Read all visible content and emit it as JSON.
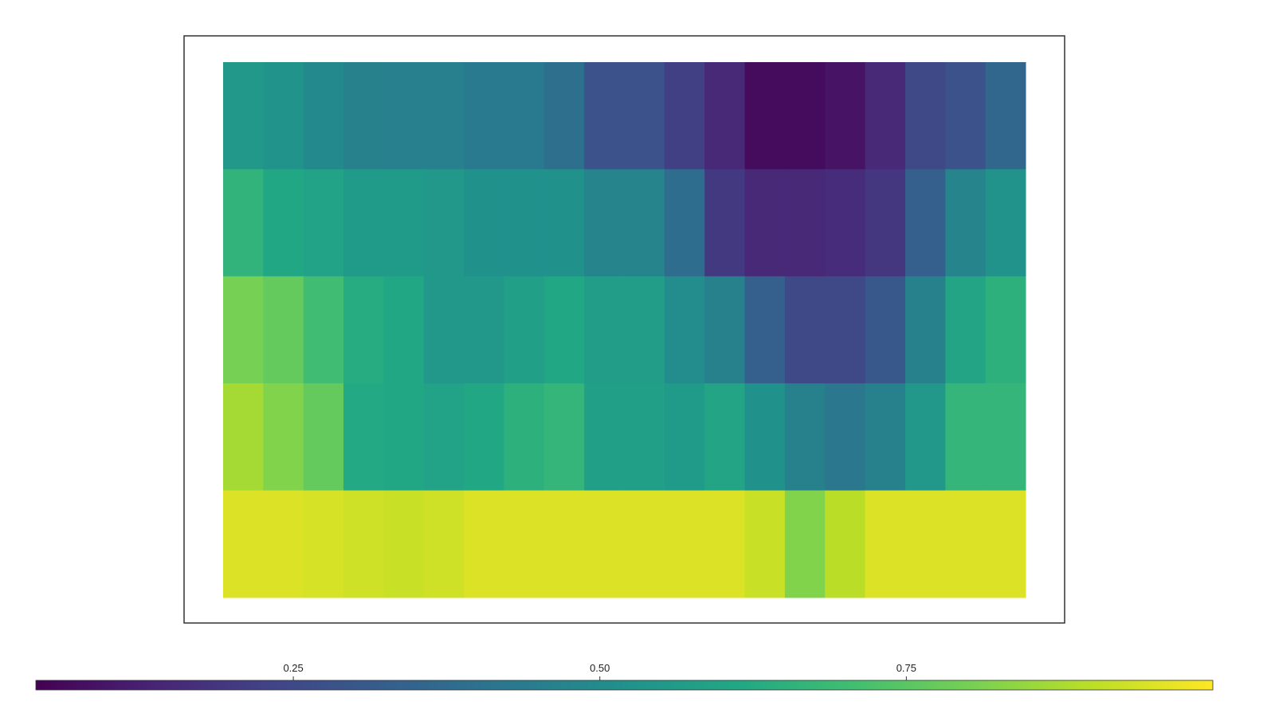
{
  "chart_data": {
    "type": "heatmap",
    "colormap": "viridis",
    "values": [
      [
        0.55,
        0.53,
        0.49,
        0.46,
        0.45,
        0.45,
        0.43,
        0.43,
        0.39,
        0.28,
        0.28,
        0.22,
        0.15,
        0.07,
        0.07,
        0.09,
        0.15,
        0.25,
        0.28,
        0.36
      ],
      [
        0.66,
        0.61,
        0.59,
        0.56,
        0.56,
        0.55,
        0.52,
        0.52,
        0.52,
        0.47,
        0.47,
        0.38,
        0.2,
        0.15,
        0.15,
        0.16,
        0.19,
        0.33,
        0.47,
        0.53
      ],
      [
        0.8,
        0.77,
        0.7,
        0.63,
        0.61,
        0.55,
        0.55,
        0.58,
        0.61,
        0.57,
        0.57,
        0.5,
        0.46,
        0.33,
        0.25,
        0.25,
        0.3,
        0.46,
        0.6,
        0.65
      ],
      [
        0.87,
        0.82,
        0.77,
        0.62,
        0.61,
        0.59,
        0.61,
        0.65,
        0.67,
        0.58,
        0.58,
        0.56,
        0.6,
        0.52,
        0.46,
        0.42,
        0.46,
        0.55,
        0.67,
        0.67
      ],
      [
        0.95,
        0.95,
        0.94,
        0.93,
        0.92,
        0.93,
        0.95,
        0.95,
        0.95,
        0.95,
        0.95,
        0.95,
        0.95,
        0.92,
        0.82,
        0.9,
        0.95,
        0.95,
        0.95,
        0.95
      ]
    ],
    "clim": [
      0.04,
      1.0
    ],
    "cticks": [
      0.25,
      {
        "value": 0.5,
        "label": "0.50"
      },
      0.75
    ]
  }
}
